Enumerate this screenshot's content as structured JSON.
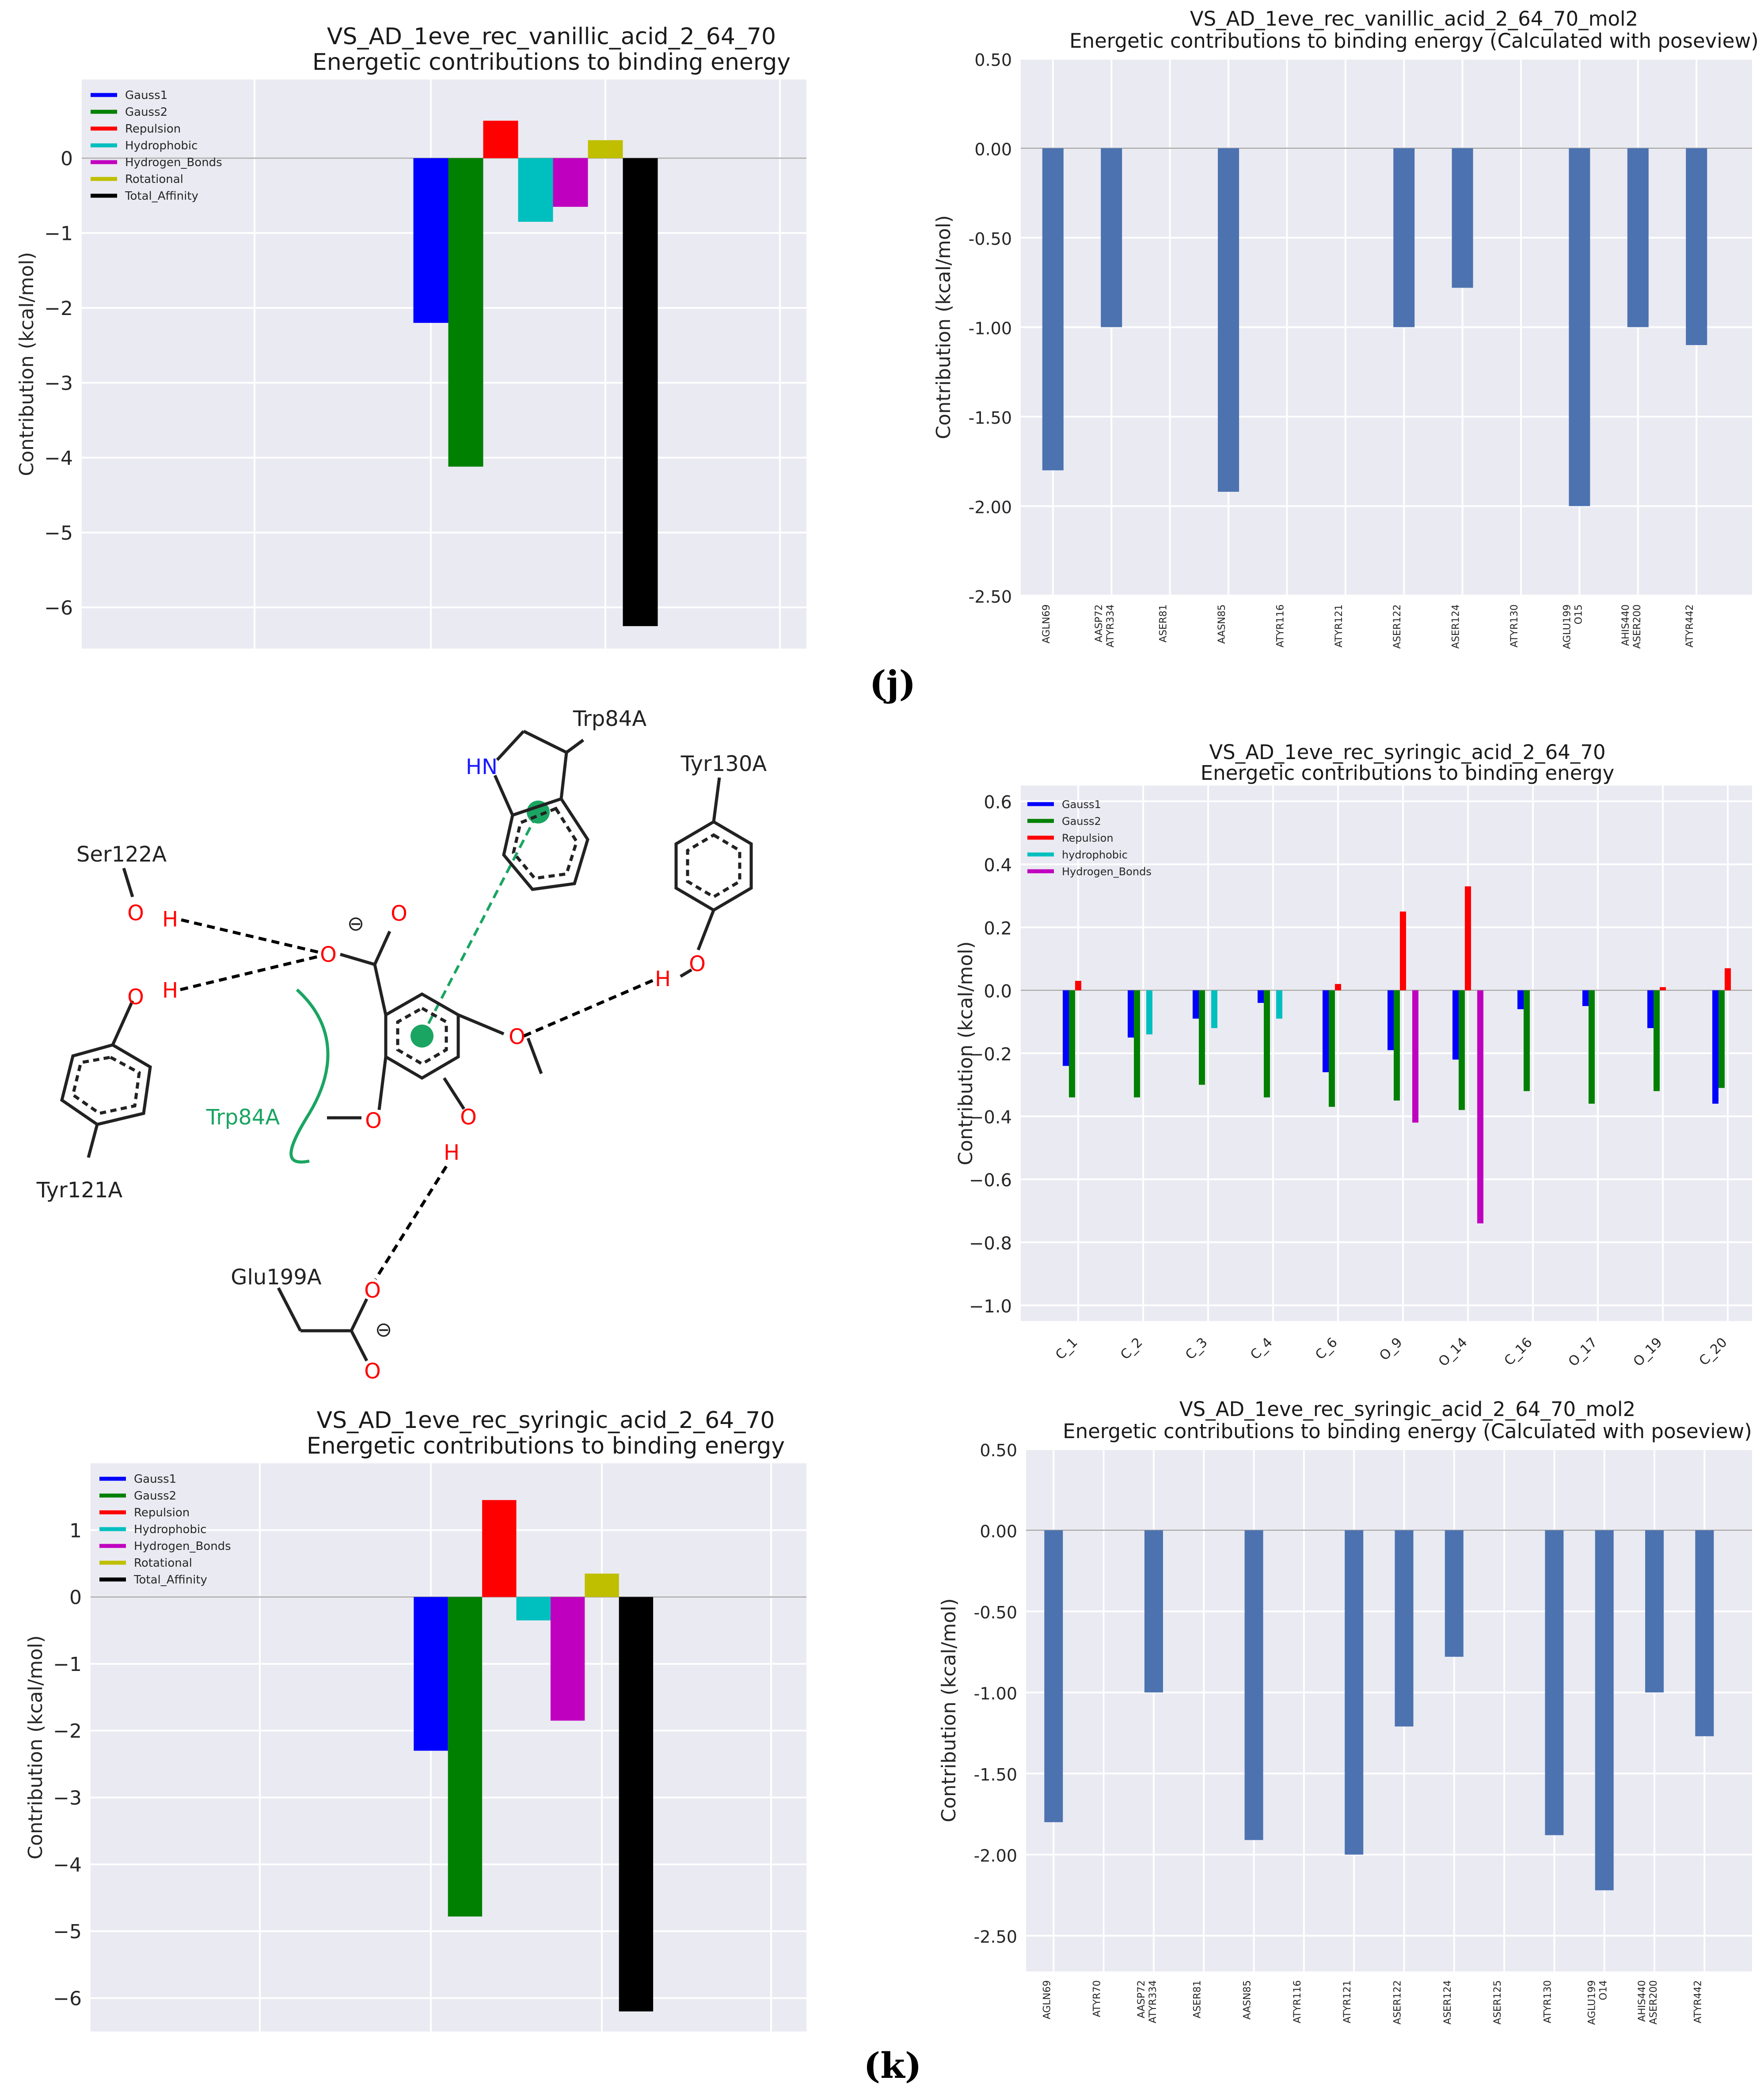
{
  "panel_labels": {
    "j": "(j)",
    "k": "(k)"
  },
  "chart_data": [
    {
      "id": "vanillic_terms",
      "type": "bar",
      "title": "VS_AD_1eve_rec_vanillic_acid_2_64_70",
      "subtitle": "Energetic contributions to binding energy",
      "ylabel": "Contribution (kcal/mol)",
      "xlabel": "",
      "ylim": [
        -6.55,
        1.05
      ],
      "yticks": [
        0,
        -1,
        -2,
        -3,
        -4,
        -5,
        -6
      ],
      "ytick_labels": [
        "0",
        "−1",
        "−2",
        "−3",
        "−4",
        "−5",
        "−6"
      ],
      "legend_position": "top-left",
      "series": [
        {
          "name": "Gauss1",
          "color": "#0000ff",
          "value": -2.2
        },
        {
          "name": "Gauss2",
          "color": "#008000",
          "value": -4.12
        },
        {
          "name": "Repulsion",
          "color": "#ff0000",
          "value": 0.5
        },
        {
          "name": "Hydrophobic",
          "color": "#00bfbf",
          "value": -0.85
        },
        {
          "name": "Hydrogen_Bonds",
          "color": "#bf00bf",
          "value": -0.65
        },
        {
          "name": "Rotational",
          "color": "#bfbf00",
          "value": 0.24
        },
        {
          "name": "Total_Affinity",
          "color": "#000000",
          "value": -6.25
        }
      ]
    },
    {
      "id": "vanillic_poseview",
      "type": "bar",
      "title": "VS_AD_1eve_rec_vanillic_acid_2_64_70_mol2",
      "subtitle": "Energetic contributions to binding energy (Calculated with poseview)",
      "ylabel": "Contribution (kcal/mol)",
      "ylim": [
        -2.5,
        0.5
      ],
      "yticks": [
        0.5,
        0.0,
        -0.5,
        -1.0,
        -1.5,
        -2.0,
        -2.5
      ],
      "ytick_labels": [
        "0.50",
        "0.00",
        "-0.50",
        "-1.00",
        "-1.50",
        "-2.00",
        "-2.50"
      ],
      "bar_color": "#4c72b0",
      "categories": [
        [
          "AGLN69"
        ],
        [
          "AASP72",
          "ATYR334"
        ],
        [
          "ASER81"
        ],
        [
          "AASN85"
        ],
        [
          "ATYR116"
        ],
        [
          "ATYR121"
        ],
        [
          "ASER122"
        ],
        [
          "ASER124"
        ],
        [
          "ATYR130"
        ],
        [
          "AGLU199",
          "O15"
        ],
        [
          "AHIS440",
          "ASER200"
        ],
        [
          "ATYR442"
        ]
      ],
      "values": [
        -1.8,
        -1.0,
        0,
        -1.92,
        0,
        0,
        -1.0,
        -0.78,
        0,
        -2.0,
        -1.0,
        -1.1
      ]
    },
    {
      "id": "syringic_atoms",
      "type": "bar",
      "title": "VS_AD_1eve_rec_syringic_acid_2_64_70",
      "subtitle": "Energetic contributions to binding energy",
      "ylabel": "Contribution (kcal/mol)",
      "ylim": [
        -1.05,
        0.65
      ],
      "yticks": [
        0.6,
        0.4,
        0.2,
        0.0,
        -0.2,
        -0.4,
        -0.6,
        -0.8,
        -1.0
      ],
      "ytick_labels": [
        "0.6",
        "0.4",
        "0.2",
        "0.0",
        "−0.2",
        "−0.4",
        "−0.6",
        "−0.8",
        "−1.0"
      ],
      "legend_position": "top-left",
      "categories": [
        "C_1",
        "C_2",
        "C_3",
        "C_4",
        "C_6",
        "O_9",
        "O_14",
        "C_16",
        "O_17",
        "O_19",
        "C_20"
      ],
      "series": [
        {
          "name": "Gauss1",
          "color": "#0000ff",
          "values": [
            -0.24,
            -0.15,
            -0.09,
            -0.04,
            -0.26,
            -0.19,
            -0.22,
            -0.06,
            -0.05,
            -0.12,
            -0.36
          ]
        },
        {
          "name": "Gauss2",
          "color": "#008000",
          "values": [
            -0.34,
            -0.34,
            -0.3,
            -0.34,
            -0.37,
            -0.35,
            -0.38,
            -0.32,
            -0.36,
            -0.32,
            -0.31
          ]
        },
        {
          "name": "Repulsion",
          "color": "#ff0000",
          "values": [
            0.03,
            0,
            0,
            0,
            0.02,
            0.25,
            0.33,
            0,
            0,
            0.01,
            0.07
          ]
        },
        {
          "name": "hydrophobic",
          "color": "#00bfbf",
          "values": [
            0,
            -0.14,
            -0.12,
            -0.09,
            0,
            0,
            0,
            0,
            0,
            0,
            0
          ]
        },
        {
          "name": "Hydrogen_Bonds",
          "color": "#bf00bf",
          "values": [
            0,
            0,
            0,
            0,
            0,
            -0.42,
            -0.74,
            0,
            0,
            0,
            0
          ]
        }
      ]
    },
    {
      "id": "syringic_terms",
      "type": "bar",
      "title": "VS_AD_1eve_rec_syringic_acid_2_64_70",
      "subtitle": "Energetic contributions to binding energy",
      "ylabel": "Contribution (kcal/mol)",
      "ylim": [
        -6.5,
        2.0
      ],
      "yticks": [
        1,
        0,
        -1,
        -2,
        -3,
        -4,
        -5,
        -6
      ],
      "ytick_labels": [
        "1",
        "0",
        "−1",
        "−2",
        "−3",
        "−4",
        "−5",
        "−6"
      ],
      "legend_position": "top-left",
      "series": [
        {
          "name": "Gauss1",
          "color": "#0000ff",
          "value": -2.3
        },
        {
          "name": "Gauss2",
          "color": "#008000",
          "value": -4.78
        },
        {
          "name": "Repulsion",
          "color": "#ff0000",
          "value": 1.45
        },
        {
          "name": "Hydrophobic",
          "color": "#00bfbf",
          "value": -0.35
        },
        {
          "name": "Hydrogen_Bonds",
          "color": "#bf00bf",
          "value": -1.85
        },
        {
          "name": "Rotational",
          "color": "#bfbf00",
          "value": 0.35
        },
        {
          "name": "Total_Affinity",
          "color": "#000000",
          "value": -6.2
        }
      ]
    },
    {
      "id": "syringic_poseview",
      "type": "bar",
      "title": "VS_AD_1eve_rec_syringic_acid_2_64_70_mol2",
      "subtitle": "Energetic contributions to binding energy (Calculated with poseview)",
      "ylabel": "Contribution (kcal/mol)",
      "ylim": [
        -2.72,
        0.5
      ],
      "yticks": [
        0.5,
        0.0,
        -0.5,
        -1.0,
        -1.5,
        -2.0,
        -2.5
      ],
      "ytick_labels": [
        "0.50",
        "0.00",
        "-0.50",
        "-1.00",
        "-1.50",
        "-2.00",
        "-2.50"
      ],
      "bar_color": "#4c72b0",
      "categories": [
        [
          "AGLN69"
        ],
        [
          "ATYR70"
        ],
        [
          "AASP72",
          "ATYR334"
        ],
        [
          "ASER81"
        ],
        [
          "AASN85"
        ],
        [
          "ATYR116"
        ],
        [
          "ATYR121"
        ],
        [
          "ASER122"
        ],
        [
          "ASER124"
        ],
        [
          "ASER125"
        ],
        [
          "ATYR130"
        ],
        [
          "AGLU199",
          "O14"
        ],
        [
          "AHIS440",
          "ASER200"
        ],
        [
          "ATYR442"
        ]
      ],
      "values": [
        -1.8,
        0,
        -1.0,
        0,
        -1.91,
        0,
        -2.0,
        -1.21,
        -0.78,
        0,
        -1.88,
        -2.22,
        -1.0,
        -1.27
      ]
    }
  ],
  "molecule": {
    "residues": {
      "trp84_top": "Trp84A",
      "tyr130": "Tyr130A",
      "ser122": "Ser122A",
      "tyr121": "Tyr121A",
      "trp84_arc": "Trp84A",
      "glu199": "Glu199A"
    },
    "atoms": {
      "hn": "HN",
      "o": "O",
      "h": "H",
      "minus": "⊖"
    }
  }
}
